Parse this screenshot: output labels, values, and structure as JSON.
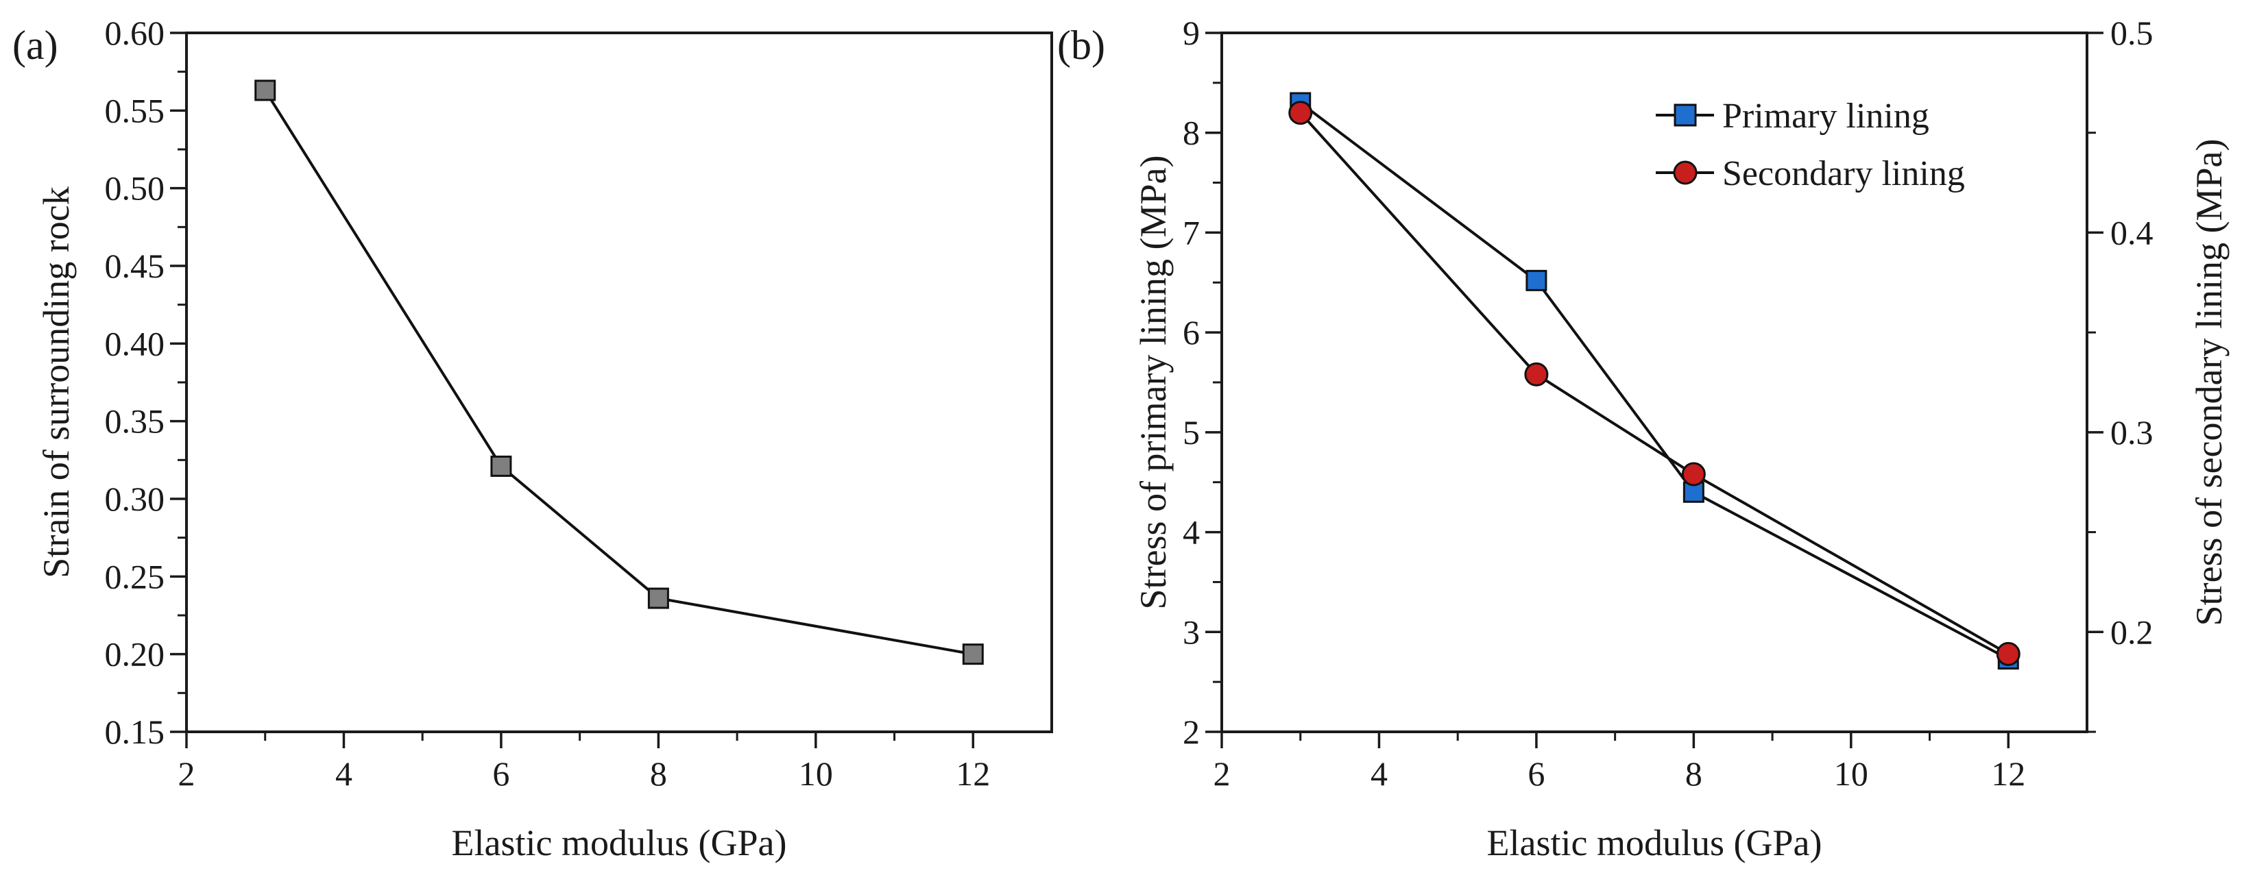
{
  "chart_data": [
    {
      "panel": "(a)",
      "type": "line",
      "xlabel": "Elastic modulus (GPa)",
      "ylabel": "Strain of surrounding rock",
      "xlim": [
        2,
        13
      ],
      "ylim": [
        0.15,
        0.6
      ],
      "xticks": [
        2,
        4,
        6,
        8,
        10,
        12
      ],
      "xtick_labels": [
        "2",
        "4",
        "6",
        "8",
        "10",
        "12"
      ],
      "yticks": [
        0.15,
        0.2,
        0.25,
        0.3,
        0.35,
        0.4,
        0.45,
        0.5,
        0.55,
        0.6
      ],
      "ytick_labels": [
        "0.15",
        "0.20",
        "0.25",
        "0.30",
        "0.35",
        "0.40",
        "0.45",
        "0.50",
        "0.55",
        "0.60"
      ],
      "series": [
        {
          "name": "Strain of surrounding rock",
          "marker": "square",
          "color": "#7f7f7f",
          "x": [
            3,
            6,
            8,
            12
          ],
          "y": [
            0.563,
            0.321,
            0.236,
            0.2
          ]
        }
      ]
    },
    {
      "panel": "(b)",
      "type": "line",
      "xlabel": "Elastic modulus (GPa)",
      "ylabel": "Stress of primary lining (MPa)",
      "ylabel_right": "Stress of secondary lining (MPa)",
      "xlim": [
        2,
        13
      ],
      "ylim": [
        2,
        9
      ],
      "ylim_right": [
        0.15,
        0.5
      ],
      "xticks": [
        2,
        4,
        6,
        8,
        10,
        12
      ],
      "xtick_labels": [
        "2",
        "4",
        "6",
        "8",
        "10",
        "12"
      ],
      "yticks": [
        2,
        3,
        4,
        5,
        6,
        7,
        8,
        9
      ],
      "ytick_labels": [
        "2",
        "3",
        "4",
        "5",
        "6",
        "7",
        "8",
        "9"
      ],
      "yticks_right": [
        0.2,
        0.3,
        0.4,
        0.5
      ],
      "ytick_labels_right": [
        "0.2",
        "0.3",
        "0.4",
        "0.5"
      ],
      "legend_position": "top-right",
      "series": [
        {
          "name": "Primary lining",
          "axis": "left",
          "marker": "square",
          "color": "#1f6fd1",
          "x": [
            3,
            6,
            8,
            12
          ],
          "y": [
            8.3,
            6.52,
            4.4,
            2.73
          ]
        },
        {
          "name": "Secondary lining",
          "axis": "right",
          "marker": "circle",
          "color": "#c81e1e",
          "x": [
            3,
            6,
            8,
            12
          ],
          "y": [
            0.46,
            0.329,
            0.279,
            0.189
          ]
        }
      ]
    }
  ]
}
